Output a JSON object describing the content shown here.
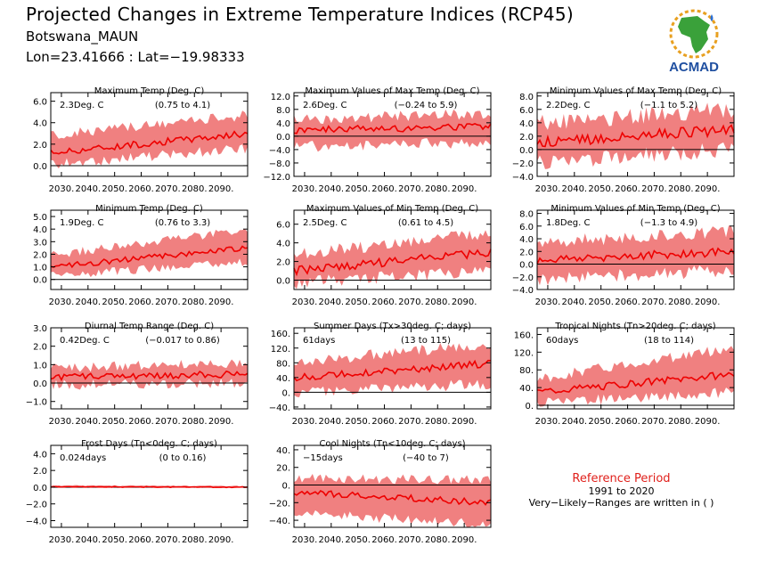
{
  "header": {
    "title": "Projected Changes in Extreme Temperature Indices (RCP45)",
    "location": "Botswana_MAUN",
    "coords": "Lon=23.41666 : Lat=−19.98333"
  },
  "logo": {
    "text": "ACMAD",
    "icon": "africa-map-logo"
  },
  "reference": {
    "title": "Reference Period",
    "period": "1991 to 2020",
    "note": "Very−Likely−Ranges are written in ( )"
  },
  "colors": {
    "median_line": "#ee0000",
    "band": "#f08080",
    "zero_line": "#000000",
    "reference_title": "#e0201b"
  },
  "x_ticks": [
    "2030.",
    "2040.",
    "2050.",
    "2060.",
    "2070.",
    "2080.",
    "2090."
  ],
  "chart_data": [
    {
      "type": "area",
      "title": "Maximum Temp (Deg. C)",
      "value": "2.3Deg. C",
      "range": "(0.75 to 4.1)",
      "yticks": [
        "6.0",
        "4.0",
        "2.0",
        "0.0"
      ],
      "ylim": [
        -1.0,
        6.8
      ],
      "xlim": [
        2026,
        2100
      ],
      "trend": [
        1.2,
        3.0
      ],
      "band_low": [
        0.3,
        1.8
      ],
      "band_high": [
        2.6,
        4.5
      ],
      "amp": 0.7
    },
    {
      "type": "area",
      "title": "Maximum Values of Max Temp (Deg. C)",
      "value": "2.6Deg. C",
      "range": "(−0.24 to 5.9)",
      "yticks": [
        "12.0",
        "8.0",
        "4.0",
        "0.0",
        "−4.0",
        "−8.0",
        "−12.0"
      ],
      "ylim": [
        -12,
        13
      ],
      "xlim": [
        2026,
        2100
      ],
      "trend": [
        1.8,
        3.0
      ],
      "band_low": [
        -2.5,
        -1.0
      ],
      "band_high": [
        4.5,
        6.0
      ],
      "amp": 2.5
    },
    {
      "type": "area",
      "title": "Minimum Values of Max Temp (Deg. C)",
      "value": "2.2Deg. C",
      "range": "(−1.1 to 5.2)",
      "yticks": [
        "8.0",
        "6.0",
        "4.0",
        "2.0",
        "0.0",
        "−2.0",
        "−4.0"
      ],
      "ylim": [
        -4,
        8.5
      ],
      "xlim": [
        2026,
        2100
      ],
      "trend": [
        1.0,
        3.0
      ],
      "band_low": [
        -1.5,
        0.5
      ],
      "band_high": [
        3.5,
        5.5
      ],
      "amp": 1.8
    },
    {
      "type": "area",
      "title": "Minimum Temp (Deg. C)",
      "value": "1.9Deg. C",
      "range": "(0.76 to 3.3)",
      "yticks": [
        "5.0",
        "4.0",
        "3.0",
        "2.0",
        "1.0",
        "0.0"
      ],
      "ylim": [
        -0.8,
        5.5
      ],
      "xlim": [
        2026,
        2100
      ],
      "trend": [
        1.0,
        2.5
      ],
      "band_low": [
        0.4,
        1.5
      ],
      "band_high": [
        1.8,
        3.8
      ],
      "amp": 0.5
    },
    {
      "type": "area",
      "title": "Maximum Values of Min Temp (Deg. C)",
      "value": "2.5Deg. C",
      "range": "(0.61 to 4.5)",
      "yticks": [
        "6.0",
        "4.0",
        "2.0",
        "0.0"
      ],
      "ylim": [
        -1.0,
        7.5
      ],
      "xlim": [
        2026,
        2100
      ],
      "trend": [
        1.0,
        3.0
      ],
      "band_low": [
        0.0,
        1.3
      ],
      "band_high": [
        2.5,
        4.8
      ],
      "amp": 1.0
    },
    {
      "type": "area",
      "title": "Minimum Values of Min Temp (Deg. C)",
      "value": "1.8Deg. C",
      "range": "(−1.3 to 4.9)",
      "yticks": [
        "8.0",
        "6.0",
        "4.0",
        "2.0",
        "0.0",
        "−2.0",
        "−4.0"
      ],
      "ylim": [
        -4,
        8.5
      ],
      "xlim": [
        2026,
        2100
      ],
      "trend": [
        0.6,
        2.0
      ],
      "band_low": [
        -2.0,
        -0.5
      ],
      "band_high": [
        3.0,
        4.8
      ],
      "amp": 1.5
    },
    {
      "type": "area",
      "title": "Diurnal Temp Range (Deg. C)",
      "value": "0.42Deg. C",
      "range": "(−0.017 to 0.86)",
      "yticks": [
        "3.0",
        "2.0",
        "1.0",
        "0.0",
        "−1.0"
      ],
      "ylim": [
        -1.4,
        3.0
      ],
      "xlim": [
        2026,
        2100
      ],
      "trend": [
        0.3,
        0.5
      ],
      "band_low": [
        0.0,
        0.1
      ],
      "band_high": [
        0.7,
        1.0
      ],
      "amp": 0.4
    },
    {
      "type": "area",
      "title": "Summer Days (Tx>30deg. C; days)",
      "value": "61days",
      "range": "(13 to 115)",
      "yticks": [
        "160.",
        "120.",
        "80.",
        "40.",
        "0.",
        "−40."
      ],
      "ylim": [
        -45,
        175
      ],
      "xlim": [
        2026,
        2100
      ],
      "trend": [
        40,
        78
      ],
      "band_low": [
        5,
        30
      ],
      "band_high": [
        75,
        125
      ],
      "amp": 22
    },
    {
      "type": "area",
      "title": "Tropical Nights (Tn>20deg. C; days)",
      "value": "60days",
      "range": "(18 to 114)",
      "yticks": [
        "160.",
        "120.",
        "80.",
        "40.",
        "0."
      ],
      "ylim": [
        -8,
        175
      ],
      "xlim": [
        2026,
        2100
      ],
      "trend": [
        30,
        70
      ],
      "band_low": [
        10,
        35
      ],
      "band_high": [
        55,
        125
      ],
      "amp": 18
    },
    {
      "type": "area",
      "title": "Frost Days (Tn<0deg. C; days)",
      "value": "0.024days",
      "range": "(0 to 0.16)",
      "yticks": [
        "4.0",
        "2.0",
        "0.0",
        "−2.0",
        "−4.0"
      ],
      "ylim": [
        -4.8,
        5.0
      ],
      "xlim": [
        2026,
        2100
      ],
      "trend": [
        0.05,
        0.0
      ],
      "band_low": [
        0,
        0
      ],
      "band_high": [
        0.15,
        0.1
      ],
      "amp": 0.1
    },
    {
      "type": "area",
      "title": "Cool Nights (Tn<10deg. C; days)",
      "value": "−15days",
      "range": "(−40 to 7)",
      "yticks": [
        "40.",
        "20.",
        "0.",
        "−20.",
        "−40."
      ],
      "ylim": [
        -48,
        45
      ],
      "xlim": [
        2026,
        2100
      ],
      "trend": [
        -8,
        -20
      ],
      "band_low": [
        -30,
        -42
      ],
      "band_high": [
        6,
        3
      ],
      "amp": 8
    }
  ]
}
